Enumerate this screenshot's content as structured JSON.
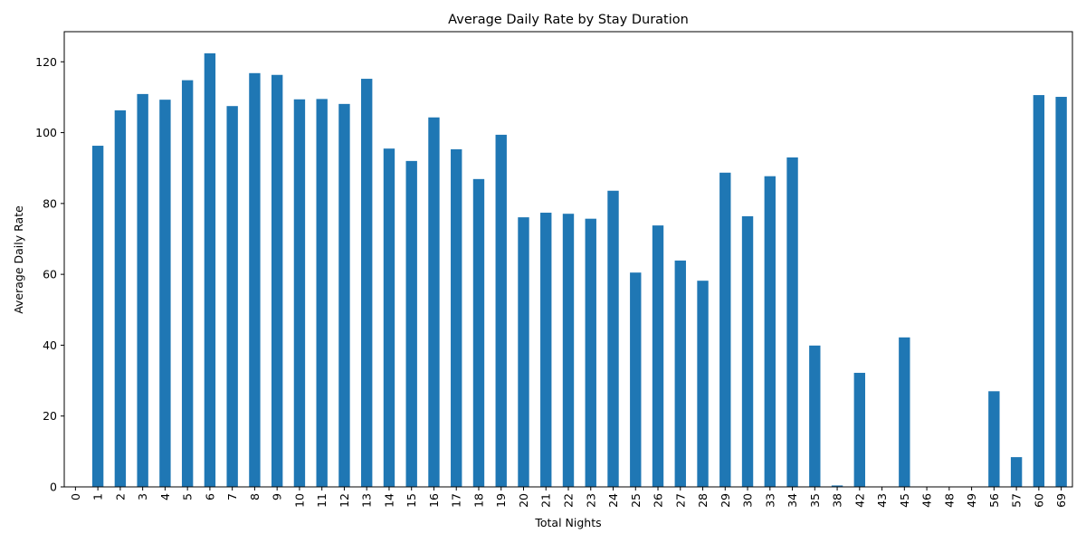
{
  "chart_data": {
    "type": "bar",
    "title": "Average Daily Rate by Stay Duration",
    "xlabel": "Total Nights",
    "ylabel": "Average Daily Rate",
    "categories": [
      "0",
      "1",
      "2",
      "3",
      "4",
      "5",
      "6",
      "7",
      "8",
      "9",
      "10",
      "11",
      "12",
      "13",
      "14",
      "15",
      "16",
      "17",
      "18",
      "19",
      "20",
      "21",
      "22",
      "23",
      "24",
      "25",
      "26",
      "27",
      "28",
      "29",
      "30",
      "33",
      "34",
      "35",
      "38",
      "42",
      "43",
      "45",
      "46",
      "48",
      "49",
      "56",
      "57",
      "60",
      "69"
    ],
    "values": [
      0,
      96.3,
      106.3,
      110.9,
      109.3,
      114.8,
      122.4,
      107.5,
      116.8,
      116.3,
      109.4,
      109.5,
      108.1,
      115.2,
      95.5,
      92.0,
      104.3,
      95.3,
      86.9,
      99.4,
      76.1,
      77.4,
      77.1,
      75.7,
      83.6,
      60.5,
      73.8,
      63.9,
      58.2,
      88.7,
      76.4,
      87.7,
      93.0,
      39.9,
      0.4,
      32.2,
      0,
      42.2,
      0,
      0,
      0,
      27.0,
      8.4,
      110.6,
      110.1
    ],
    "ylim": [
      0,
      128.5
    ],
    "yticks": [
      0,
      20,
      40,
      60,
      80,
      100,
      120
    ],
    "bar_color": "#1f77b4",
    "grid": false,
    "legend": "none"
  }
}
